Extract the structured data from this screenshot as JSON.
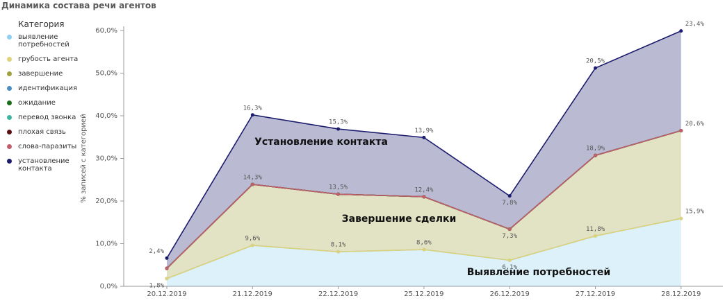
{
  "chart_data": {
    "type": "stacked-area",
    "title": "Динамика состава речи агентов",
    "legend_title": "Категория",
    "y_label": "% записей с категорией",
    "categories": [
      "20.12.2019",
      "21.12.2019",
      "22.12.2019",
      "25.12.2019",
      "26.12.2019",
      "27.12.2019",
      "28.12.2019"
    ],
    "ylim": [
      0,
      60
    ],
    "yticks": [
      {
        "value": 0,
        "label": "0,0%"
      },
      {
        "value": 10,
        "label": "10,0%"
      },
      {
        "value": 20,
        "label": "20,0%"
      },
      {
        "value": 30,
        "label": "30,0%"
      },
      {
        "value": 40,
        "label": "40,0%"
      },
      {
        "value": 50,
        "label": "50,0%"
      },
      {
        "value": 60,
        "label": "60,0%"
      }
    ],
    "series": [
      {
        "name": "выявление потребностей",
        "color": "#8dcfef",
        "values": [
          1.8,
          9.6,
          8.1,
          8.6,
          6.1,
          11.8,
          15.9
        ],
        "value_labels": [
          "1,8%",
          "9,6%",
          "8,1%",
          "8,6%",
          "6,1%",
          "11,8%",
          "15,9%"
        ]
      },
      {
        "name": "грубость агента",
        "color": "#ddd17a",
        "values": [
          0,
          0,
          0,
          0,
          0,
          0,
          0
        ]
      },
      {
        "name": "завершение",
        "color": "#a0a03c",
        "values": [
          2.4,
          14.3,
          13.5,
          12.4,
          7.3,
          18.9,
          20.6
        ],
        "value_labels": [
          null,
          "14,3%",
          "13,5%",
          "12,4%",
          "7,3%",
          "18,9%",
          "20,6%"
        ]
      },
      {
        "name": "идентификация",
        "color": "#4b8ec4",
        "values": [
          0,
          0,
          0,
          0,
          0,
          0,
          0
        ]
      },
      {
        "name": "ожидание",
        "color": "#1a6e1a",
        "values": [
          0,
          0,
          0,
          0,
          0,
          0,
          0
        ]
      },
      {
        "name": "перевод звонка",
        "color": "#3bb6a0",
        "values": [
          0,
          0,
          0,
          0,
          0,
          0,
          0
        ]
      },
      {
        "name": "плохая связь",
        "color": "#5b1010",
        "values": [
          0,
          0,
          0,
          0,
          0,
          0,
          0
        ]
      },
      {
        "name": "слова-паразиты",
        "color": "#c0606a",
        "values": [
          0,
          0,
          0,
          0,
          0,
          0,
          0
        ]
      },
      {
        "name": "установление контакта",
        "color": "#1c1c6e",
        "values": [
          2.4,
          16.3,
          15.3,
          13.9,
          7.8,
          20.5,
          23.4
        ],
        "value_labels": [
          "2,4%",
          "16,3%",
          "15,3%",
          "13,9%",
          "7,8%",
          "20,5%",
          "23,4%"
        ]
      }
    ],
    "annotations": [
      "Установление контакта",
      "Завершение сделки",
      "Выявление потребностей"
    ]
  }
}
